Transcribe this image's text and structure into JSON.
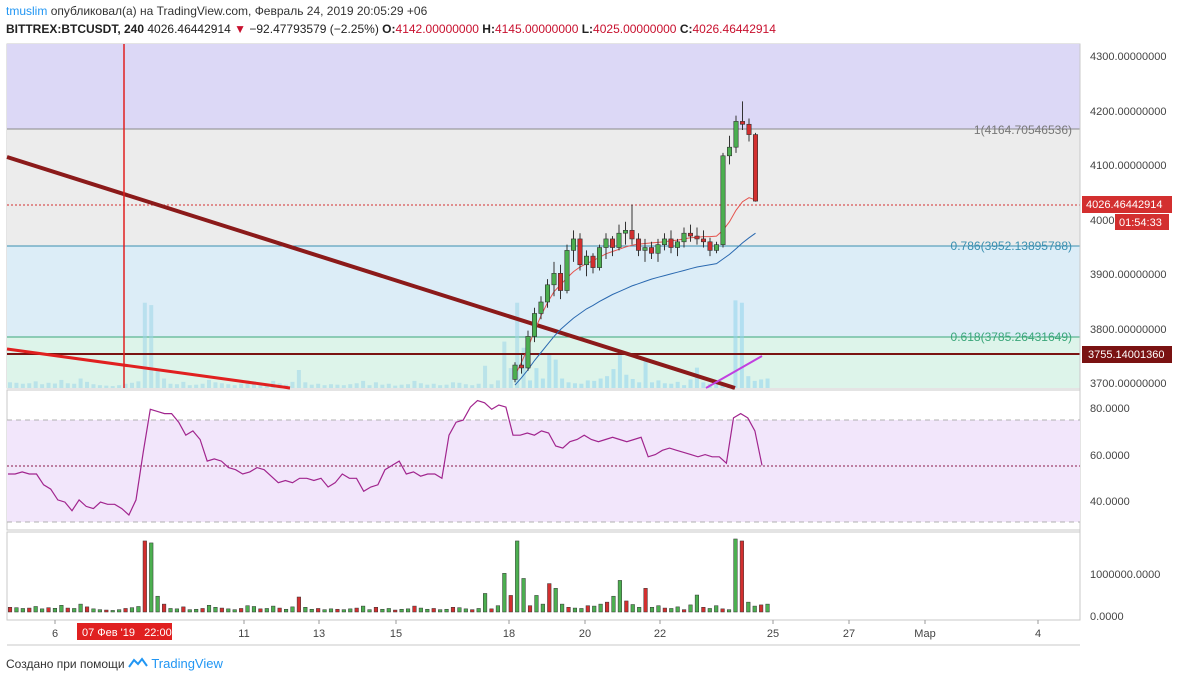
{
  "header": {
    "user": "tmuslim",
    "published_text": "опубликовал(а) на TradingView.com, Февраль 24, 2019 20:05:29 +06",
    "symbol": "BITTREX:BTCUSDT, 240",
    "last": "4026.46442914",
    "change": "−92.47793579 (−2.25%)",
    "o_label": "O:",
    "o": "4142.00000000",
    "h_label": "H:",
    "h": "4145.00000000",
    "l_label": "L:",
    "l": "4025.00000000",
    "c_label": "C:",
    "c": "4026.46442914"
  },
  "footer": {
    "created_with": "Создано при помощи",
    "brand": "TradingView"
  },
  "colors": {
    "up": "#4caf50",
    "down": "#d32f2f",
    "trend": "#8b1a1a",
    "rsi": "#a1258e",
    "ma_fast": "#e5544e",
    "ma_slow": "#2a69b0",
    "purple": "#c13fe0"
  },
  "chart_data": [
    {
      "type": "candlestick",
      "ylim": [
        3700,
        4300
      ],
      "y_ticks": [
        "4300.00000000",
        "4200.00000000",
        "4100.00000000",
        "4000.00000000",
        "3900.00000000",
        "3800.00000000",
        "3700.00000000"
      ],
      "x_ticks": [
        "6",
        "11",
        "13",
        "15",
        "18",
        "20",
        "22",
        "25",
        "27",
        "Мар",
        "4"
      ],
      "crosshair_date_label": "07 Фев '19   22:00",
      "last_price_label": "4026.46442914",
      "countdown_label": "01:54:33",
      "level_label": "3755.14001360",
      "fib_levels": [
        {
          "label": "1(4164.70546536)",
          "value": 4164.70546536
        },
        {
          "label": "0.786(3952.13895788)",
          "value": 3952.13895788
        },
        {
          "label": "0.618(3785.26431649)",
          "value": 3785.26431649
        }
      ],
      "candles": [
        [
          3715,
          3745,
          3710,
          3740
        ],
        [
          3740,
          3760,
          3725,
          3735
        ],
        [
          3735,
          3800,
          3730,
          3790
        ],
        [
          3790,
          3840,
          3780,
          3830
        ],
        [
          3830,
          3860,
          3820,
          3850
        ],
        [
          3850,
          3890,
          3840,
          3880
        ],
        [
          3880,
          3920,
          3860,
          3900
        ],
        [
          3900,
          3915,
          3855,
          3870
        ],
        [
          3870,
          3950,
          3865,
          3940
        ],
        [
          3940,
          3975,
          3920,
          3960
        ],
        [
          3960,
          3970,
          3905,
          3915
        ],
        [
          3915,
          3940,
          3895,
          3930
        ],
        [
          3930,
          3935,
          3900,
          3910
        ],
        [
          3910,
          3950,
          3905,
          3945
        ],
        [
          3945,
          3970,
          3925,
          3960
        ],
        [
          3960,
          3965,
          3930,
          3945
        ],
        [
          3945,
          3985,
          3940,
          3970
        ],
        [
          3970,
          3990,
          3950,
          3975
        ],
        [
          3975,
          4020,
          3950,
          3960
        ],
        [
          3960,
          3970,
          3930,
          3940
        ],
        [
          3940,
          3960,
          3920,
          3945
        ],
        [
          3945,
          3955,
          3925,
          3935
        ],
        [
          3935,
          3960,
          3920,
          3950
        ],
        [
          3950,
          3970,
          3940,
          3960
        ],
        [
          3960,
          3975,
          3935,
          3945
        ],
        [
          3945,
          3960,
          3930,
          3955
        ],
        [
          3955,
          3980,
          3945,
          3970
        ],
        [
          3970,
          3985,
          3955,
          3965
        ],
        [
          3965,
          3980,
          3950,
          3960
        ],
        [
          3960,
          3975,
          3945,
          3955
        ],
        [
          3955,
          3962,
          3930,
          3940
        ],
        [
          3940,
          3955,
          3935,
          3950
        ],
        [
          3950,
          4110,
          3945,
          4105
        ],
        [
          4105,
          4140,
          4090,
          4120
        ],
        [
          4120,
          4175,
          4110,
          4165
        ],
        [
          4165,
          4200,
          4150,
          4160
        ],
        [
          4160,
          4170,
          4130,
          4142
        ],
        [
          4142,
          4145,
          4025,
          4026
        ]
      ],
      "ma_fast": [
        3722,
        3745,
        3770,
        3800,
        3826,
        3849,
        3868,
        3880,
        3892,
        3903,
        3911,
        3917,
        3922,
        3928,
        3934,
        3938,
        3942,
        3946,
        3949,
        3951,
        3952,
        3953,
        3954,
        3955,
        3957,
        3958,
        3960,
        3962,
        3963,
        3964,
        3964,
        3965,
        3975,
        3990,
        4010,
        4025,
        4032,
        4028
      ],
      "ma_slow": [
        3705,
        3718,
        3732,
        3748,
        3762,
        3776,
        3790,
        3802,
        3812,
        3822,
        3830,
        3838,
        3844,
        3851,
        3857,
        3863,
        3868,
        3873,
        3878,
        3882,
        3886,
        3890,
        3893,
        3896,
        3899,
        3902,
        3905,
        3908,
        3911,
        3913,
        3915,
        3917,
        3925,
        3933,
        3943,
        3953,
        3962,
        3970
      ]
    },
    {
      "type": "line",
      "name": "RSI",
      "ylim": [
        27,
        90
      ],
      "y_ticks": [
        "80.0000",
        "60.0000",
        "40.0000"
      ],
      "values": [
        52,
        52,
        53,
        52,
        52,
        47,
        45,
        40,
        39,
        35,
        40,
        37,
        36,
        39,
        38,
        38,
        36,
        33,
        40,
        62,
        82,
        81,
        80,
        80,
        76,
        70,
        72,
        68,
        58,
        59,
        58,
        55,
        54,
        52,
        53,
        55,
        54,
        51,
        48,
        49,
        48,
        50,
        50,
        49,
        50,
        46,
        48,
        52,
        50,
        50,
        44,
        46,
        47,
        54,
        56,
        58,
        52,
        53,
        51,
        52,
        52,
        50,
        70,
        76,
        77,
        83,
        86,
        85,
        82,
        84,
        83,
        70,
        70,
        71,
        70,
        72,
        71,
        65,
        64,
        67,
        68,
        70,
        68,
        67,
        68,
        69,
        68,
        67,
        68,
        69,
        60,
        61,
        63,
        64,
        63,
        62,
        61,
        60,
        61,
        60,
        60,
        57,
        78,
        80,
        78,
        72,
        56
      ]
    },
    {
      "type": "bar",
      "name": "Volume",
      "ylim": [
        0,
        1900000
      ],
      "y_ticks": [
        "1000000.0000",
        "0.0000"
      ],
      "values": [
        120000,
        110000,
        90000,
        100000,
        140000,
        80000,
        110000,
        95000,
        170000,
        100000,
        90000,
        200000,
        130000,
        80000,
        60000,
        50000,
        40000,
        60000,
        90000,
        110000,
        140000,
        1800000,
        1750000,
        400000,
        200000,
        90000,
        80000,
        130000,
        60000,
        70000,
        90000,
        170000,
        120000,
        100000,
        80000,
        60000,
        90000,
        160000,
        140000,
        80000,
        90000,
        150000,
        100000,
        70000,
        130000,
        380000,
        120000,
        70000,
        90000,
        60000,
        80000,
        70000,
        60000,
        80000,
        100000,
        150000,
        60000,
        120000,
        70000,
        90000,
        50000,
        70000,
        80000,
        150000,
        100000,
        70000,
        90000,
        60000,
        70000,
        120000,
        110000,
        80000,
        60000,
        90000,
        470000,
        80000,
        160000,
        980000,
        420000,
        1800000,
        850000,
        160000,
        420000,
        200000,
        720000,
        600000,
        200000,
        120000,
        100000,
        90000,
        160000,
        150000,
        200000,
        250000,
        400000,
        800000,
        280000,
        190000,
        120000,
        600000,
        120000,
        160000,
        100000,
        90000,
        130000,
        60000,
        180000,
        430000,
        120000,
        90000,
        160000,
        80000,
        60000,
        1850000,
        1800000,
        250000,
        150000,
        180000,
        200000
      ]
    }
  ]
}
